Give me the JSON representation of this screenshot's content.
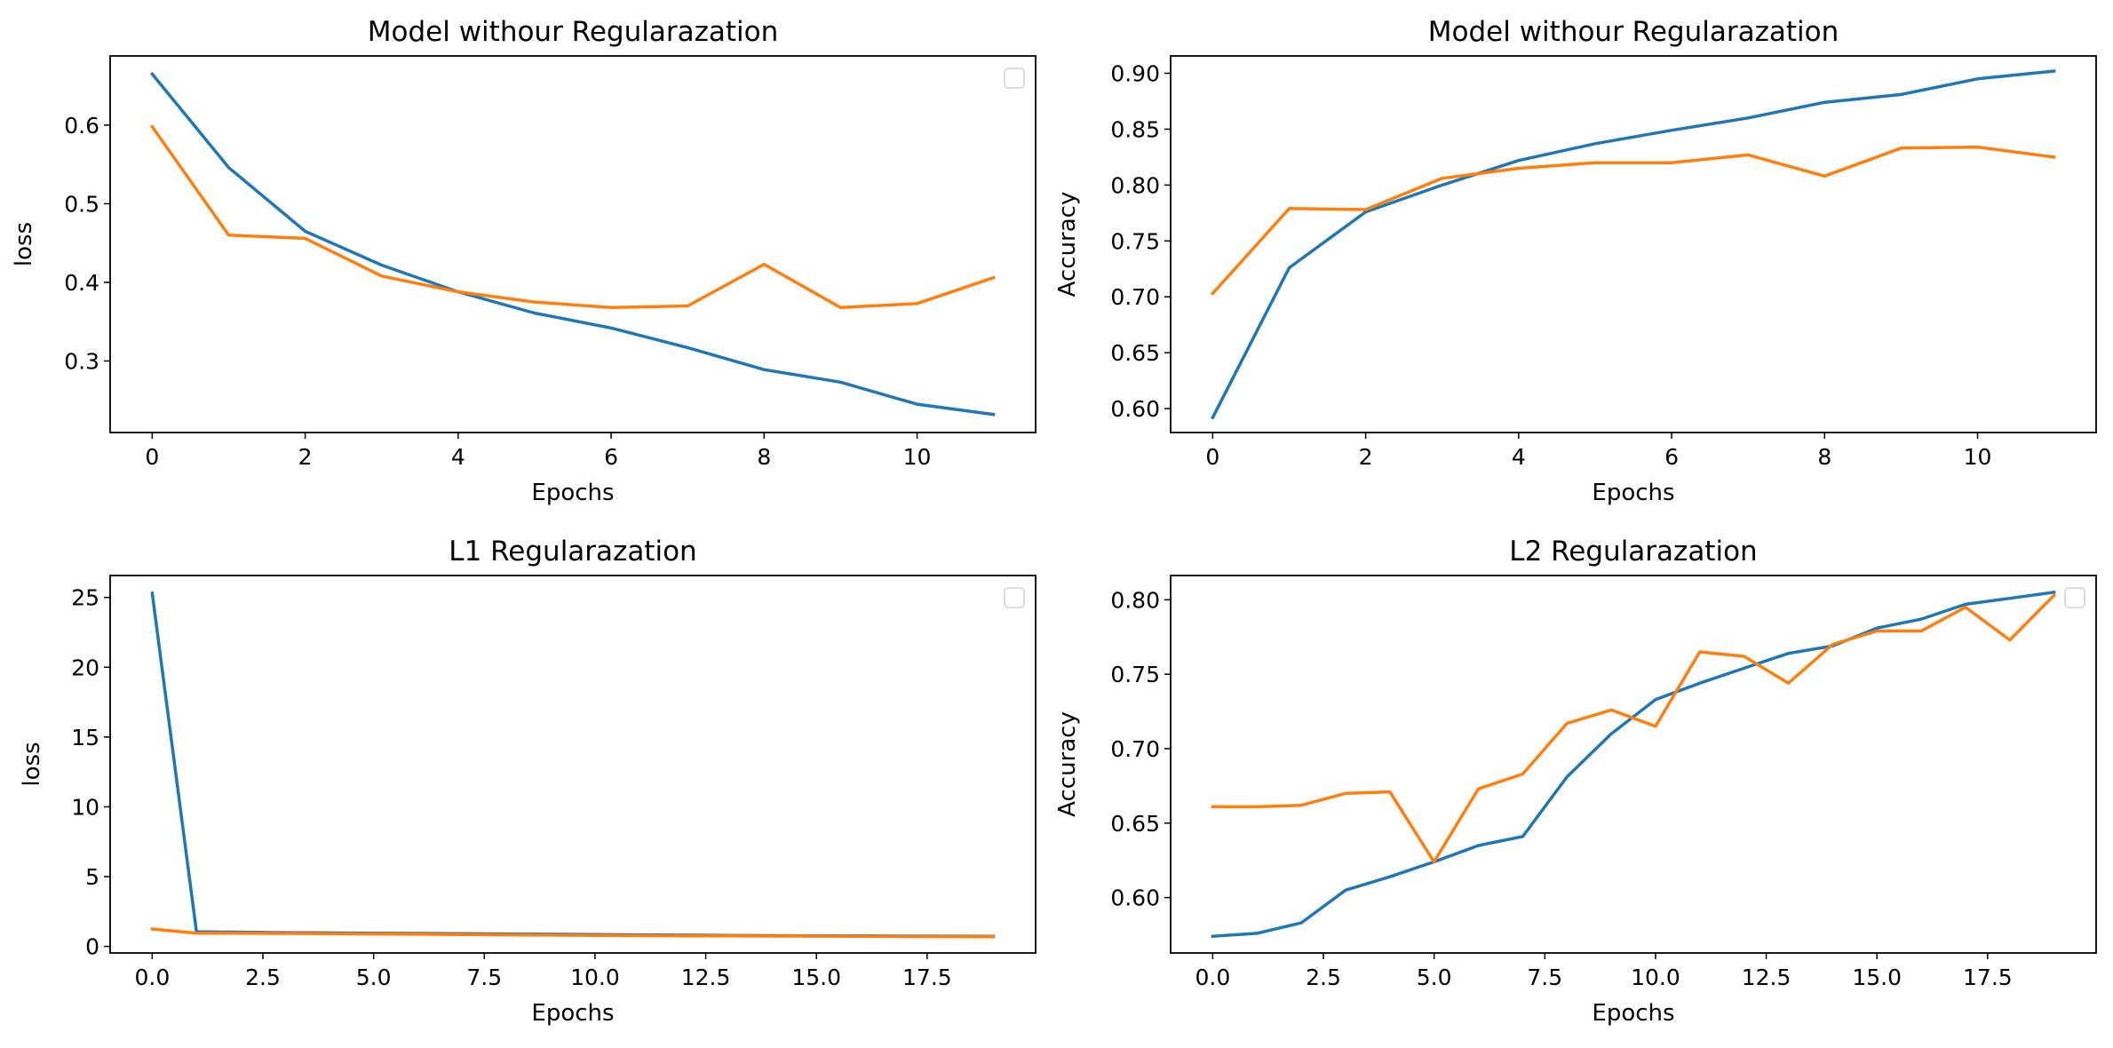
{
  "colors": {
    "series1": "#1f77b4",
    "series2": "#ff7f0e",
    "frame": "#000000",
    "legend_border": "#d9d9d9"
  },
  "chart_data": [
    {
      "type": "line",
      "title": "Model withour Regularazation",
      "xlabel": "Epochs",
      "ylabel": "loss",
      "xlim": [
        -0.55,
        11.55
      ],
      "ylim": [
        0.209,
        0.688
      ],
      "xticks": [
        0,
        2,
        4,
        6,
        8,
        10
      ],
      "xtick_labels": [
        "0",
        "2",
        "4",
        "6",
        "8",
        "10"
      ],
      "yticks": [
        0.3,
        0.4,
        0.5,
        0.6
      ],
      "ytick_labels": [
        "0.3",
        "0.4",
        "0.5",
        "0.6"
      ],
      "grid": false,
      "legend": "upper right (empty)",
      "series": [
        {
          "x": [
            0,
            1,
            2,
            3,
            4,
            5,
            6,
            7,
            8,
            9,
            10,
            11
          ],
          "values": [
            0.665,
            0.546,
            0.465,
            0.422,
            0.388,
            0.361,
            0.342,
            0.317,
            0.289,
            0.273,
            0.245,
            0.232
          ]
        },
        {
          "x": [
            0,
            1,
            2,
            3,
            4,
            5,
            6,
            7,
            8,
            9,
            10,
            11
          ],
          "values": [
            0.598,
            0.46,
            0.456,
            0.408,
            0.388,
            0.375,
            0.368,
            0.37,
            0.423,
            0.368,
            0.373,
            0.406
          ]
        }
      ]
    },
    {
      "type": "line",
      "title": "Model withour Regularazation",
      "xlabel": "Epochs",
      "ylabel": "Accuracy",
      "xlim": [
        -0.55,
        11.55
      ],
      "ylim": [
        0.5786,
        0.9155
      ],
      "xticks": [
        0,
        2,
        4,
        6,
        8,
        10
      ],
      "xtick_labels": [
        "0",
        "2",
        "4",
        "6",
        "8",
        "10"
      ],
      "yticks": [
        0.6,
        0.65,
        0.7,
        0.75,
        0.8,
        0.85,
        0.9
      ],
      "ytick_labels": [
        "0.60",
        "0.65",
        "0.70",
        "0.75",
        "0.80",
        "0.85",
        "0.90"
      ],
      "grid": false,
      "legend": "none",
      "series": [
        {
          "x": [
            0,
            1,
            2,
            3,
            4,
            5,
            6,
            7,
            8,
            9,
            10,
            11
          ],
          "values": [
            0.592,
            0.726,
            0.776,
            0.8,
            0.822,
            0.837,
            0.849,
            0.86,
            0.874,
            0.881,
            0.895,
            0.902
          ]
        },
        {
          "x": [
            0,
            1,
            2,
            3,
            4,
            5,
            6,
            7,
            8,
            9,
            10,
            11
          ],
          "values": [
            0.703,
            0.779,
            0.778,
            0.806,
            0.815,
            0.82,
            0.82,
            0.827,
            0.808,
            0.833,
            0.834,
            0.825
          ]
        }
      ]
    },
    {
      "type": "line",
      "title": "L1 Regularazation",
      "xlabel": "Epochs",
      "ylabel": "loss",
      "xlim": [
        -0.95,
        19.95
      ],
      "ylim": [
        -0.47,
        26.57
      ],
      "xticks": [
        0,
        2.5,
        5,
        7.5,
        10,
        12.5,
        15,
        17.5
      ],
      "xtick_labels": [
        "0.0",
        "2.5",
        "5.0",
        "7.5",
        "10.0",
        "12.5",
        "15.0",
        "17.5"
      ],
      "yticks": [
        0,
        5,
        10,
        15,
        20,
        25
      ],
      "ytick_labels": [
        "0",
        "5",
        "10",
        "15",
        "20",
        "25"
      ],
      "grid": false,
      "legend": "upper right (empty)",
      "series": [
        {
          "x": [
            0,
            1,
            2,
            3,
            4,
            5,
            6,
            7,
            8,
            9,
            10,
            11,
            12,
            13,
            14,
            15,
            16,
            17,
            18,
            19
          ],
          "values": [
            25.3,
            1.05,
            1.02,
            0.99,
            0.97,
            0.95,
            0.93,
            0.91,
            0.89,
            0.87,
            0.85,
            0.83,
            0.81,
            0.79,
            0.77,
            0.76,
            0.75,
            0.74,
            0.73,
            0.72
          ]
        },
        {
          "x": [
            0,
            1,
            2,
            3,
            4,
            5,
            6,
            7,
            8,
            9,
            10,
            11,
            12,
            13,
            14,
            15,
            16,
            17,
            18,
            19
          ],
          "values": [
            1.25,
            0.95,
            0.94,
            0.93,
            0.91,
            0.89,
            0.87,
            0.85,
            0.83,
            0.81,
            0.79,
            0.77,
            0.76,
            0.75,
            0.74,
            0.73,
            0.72,
            0.71,
            0.7,
            0.69
          ]
        }
      ]
    },
    {
      "type": "line",
      "title": "L2 Regularazation",
      "xlabel": "Epochs",
      "ylabel": "Accuracy",
      "xlim": [
        -0.95,
        19.95
      ],
      "ylim": [
        0.5628,
        0.8163
      ],
      "xticks": [
        0,
        2.5,
        5,
        7.5,
        10,
        12.5,
        15,
        17.5
      ],
      "xtick_labels": [
        "0.0",
        "2.5",
        "5.0",
        "7.5",
        "10.0",
        "12.5",
        "15.0",
        "17.5"
      ],
      "yticks": [
        0.6,
        0.65,
        0.7,
        0.75,
        0.8
      ],
      "ytick_labels": [
        "0.60",
        "0.65",
        "0.70",
        "0.75",
        "0.80"
      ],
      "grid": false,
      "legend": "upper right (empty)",
      "series": [
        {
          "x": [
            0,
            1,
            2,
            3,
            4,
            5,
            6,
            7,
            8,
            9,
            10,
            11,
            12,
            13,
            14,
            15,
            16,
            17,
            18,
            19
          ],
          "values": [
            0.574,
            0.576,
            0.583,
            0.605,
            0.614,
            0.624,
            0.635,
            0.641,
            0.681,
            0.71,
            0.733,
            0.744,
            0.754,
            0.764,
            0.769,
            0.781,
            0.787,
            0.797,
            0.801,
            0.805
          ]
        },
        {
          "x": [
            0,
            1,
            2,
            3,
            4,
            5,
            6,
            7,
            8,
            9,
            10,
            11,
            12,
            13,
            14,
            15,
            16,
            17,
            18,
            19
          ],
          "values": [
            0.661,
            0.661,
            0.662,
            0.67,
            0.671,
            0.624,
            0.673,
            0.683,
            0.717,
            0.726,
            0.715,
            0.765,
            0.762,
            0.744,
            0.77,
            0.779,
            0.779,
            0.795,
            0.773,
            0.803
          ]
        }
      ]
    }
  ]
}
